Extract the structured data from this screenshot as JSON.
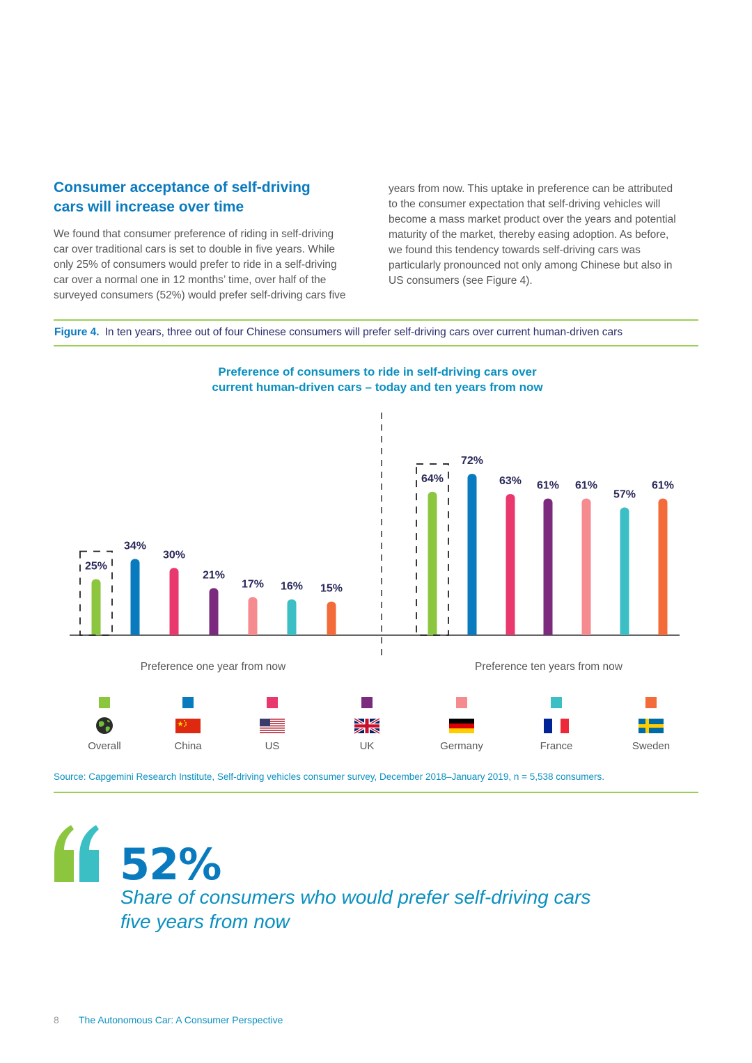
{
  "section": {
    "title_line1": "Consumer acceptance of self-driving",
    "title_line2": "cars will increase over time",
    "left_lines": [
      "We found that consumer preference of riding in self-driving",
      "car over traditional cars is set to double in five years. While",
      "only 25% of consumers would prefer to ride in a self-driving",
      "car over a normal one in 12 months’ time, over half of the",
      "surveyed consumers (52%) would prefer self-driving cars five"
    ],
    "right_lines": [
      "years from now. This uptake in preference can be attributed",
      "to the consumer expectation that self-driving vehicles will",
      "become a mass market product over the years and potential",
      "maturity of the market, thereby easing adoption. As before,",
      "we found this tendency towards self-driving cars was",
      "particularly pronounced not only among Chinese but also in",
      "US consumers (see Figure 4)."
    ]
  },
  "figure": {
    "label": "Figure 4.",
    "caption": "In ten years, three out of four Chinese consumers will prefer self-driving cars over current human-driven cars"
  },
  "chart_data": {
    "type": "bar",
    "title_line1": "Preference of consumers to ride in self-driving cars over",
    "title_line2": "current human-driven cars – today and ten years from now",
    "categories": [
      "Overall",
      "China",
      "US",
      "UK",
      "Germany",
      "France",
      "Sweden"
    ],
    "colors": [
      "#8cc63f",
      "#0a7abf",
      "#e8386d",
      "#7b2a7e",
      "#f58b8f",
      "#3bbfc4",
      "#f26b38"
    ],
    "groups": [
      {
        "name": "Preference one year from now",
        "values": [
          25,
          34,
          30,
          21,
          17,
          16,
          15
        ]
      },
      {
        "name": "Preference ten years from now",
        "values": [
          64,
          72,
          63,
          61,
          61,
          57,
          61
        ]
      }
    ],
    "value_suffix": "%",
    "highlight_category": "Overall"
  },
  "legend": {
    "icons": [
      "globe-icon",
      "china-flag-icon",
      "us-flag-icon",
      "uk-flag-icon",
      "germany-flag-icon",
      "france-flag-icon",
      "sweden-flag-icon"
    ]
  },
  "source": "Source: Capgemini Research Institute, Self-driving vehicles consumer survey, December 2018–January 2019, n = 5,538 consumers.",
  "callout": {
    "value": "52%",
    "line1": "Share of consumers who would prefer self-driving cars",
    "line2": "five years from now"
  },
  "footer": {
    "page": "8",
    "title": "The Autonomous Car: A Consumer Perspective"
  }
}
